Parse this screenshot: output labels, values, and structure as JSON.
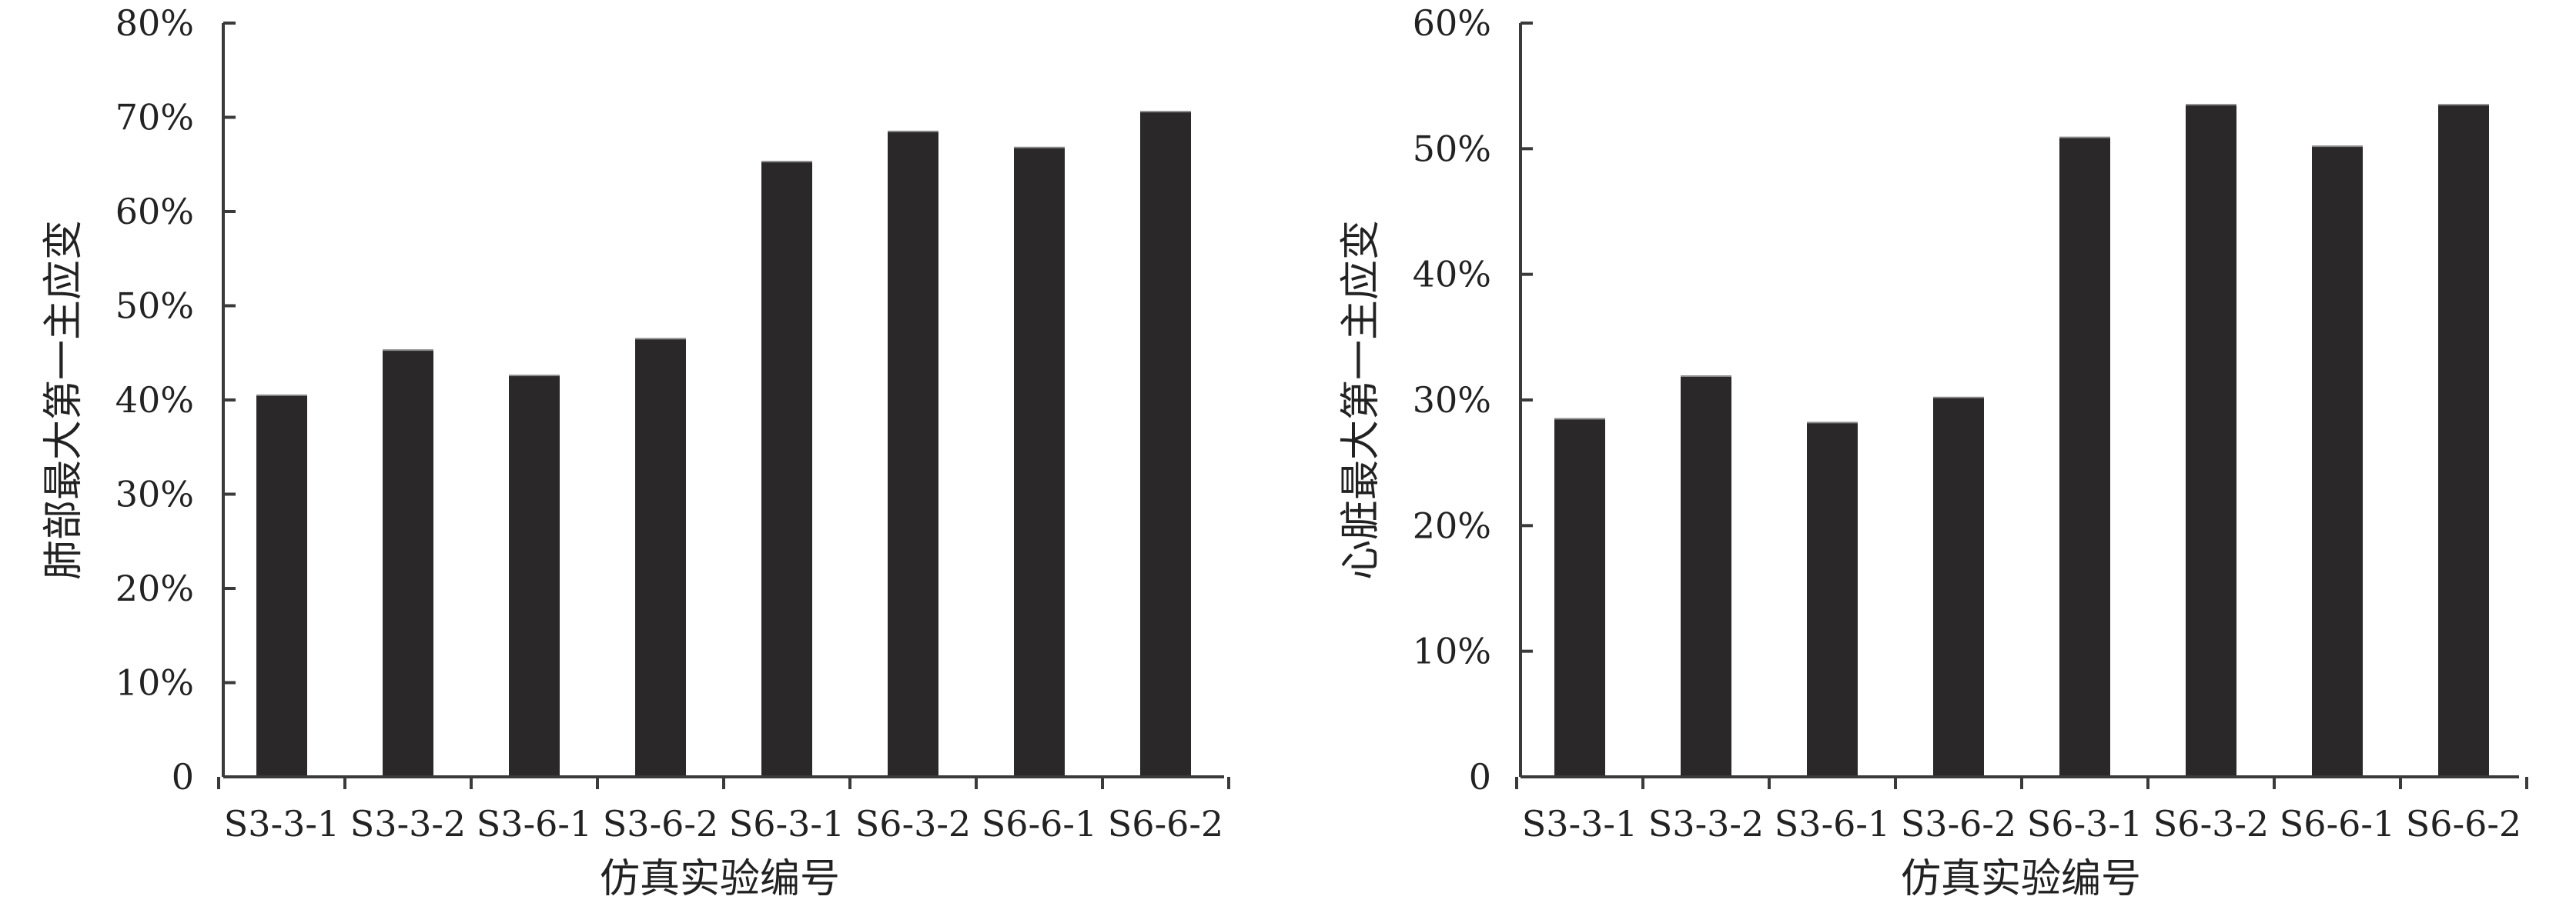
{
  "chart_data": [
    {
      "type": "bar",
      "categories": [
        "S3-3-1",
        "S3-3-2",
        "S3-6-1",
        "S3-6-2",
        "S6-3-1",
        "S6-3-2",
        "S6-6-1",
        "S6-6-2"
      ],
      "values": [
        40.5,
        45.3,
        42.6,
        46.5,
        65.3,
        68.5,
        66.8,
        70.6
      ],
      "xlabel": "仿真实验编号",
      "ylabel": "肺部最大第一主应变",
      "ylim": [
        0,
        80
      ],
      "yticks": [
        0,
        10,
        20,
        30,
        40,
        50,
        60,
        70,
        80
      ],
      "ytick_labels": [
        "0",
        "10%",
        "20%",
        "30%",
        "40%",
        "50%",
        "60%",
        "70%",
        "80%"
      ],
      "bar_color": "#2b2829",
      "grid": false
    },
    {
      "type": "bar",
      "categories": [
        "S3-3-1",
        "S3-3-2",
        "S3-6-1",
        "S3-6-2",
        "S6-3-1",
        "S6-3-2",
        "S6-6-1",
        "S6-6-2"
      ],
      "values": [
        28.5,
        31.9,
        28.2,
        30.2,
        50.9,
        53.5,
        50.2,
        53.5
      ],
      "xlabel": "仿真实验编号",
      "ylabel": "心脏最大第一主应变",
      "ylim": [
        0,
        60
      ],
      "yticks": [
        0,
        10,
        20,
        30,
        40,
        50,
        60
      ],
      "ytick_labels": [
        "0",
        "10%",
        "20%",
        "30%",
        "40%",
        "50%",
        "60%"
      ],
      "bar_color": "#2b2829",
      "grid": false
    }
  ]
}
